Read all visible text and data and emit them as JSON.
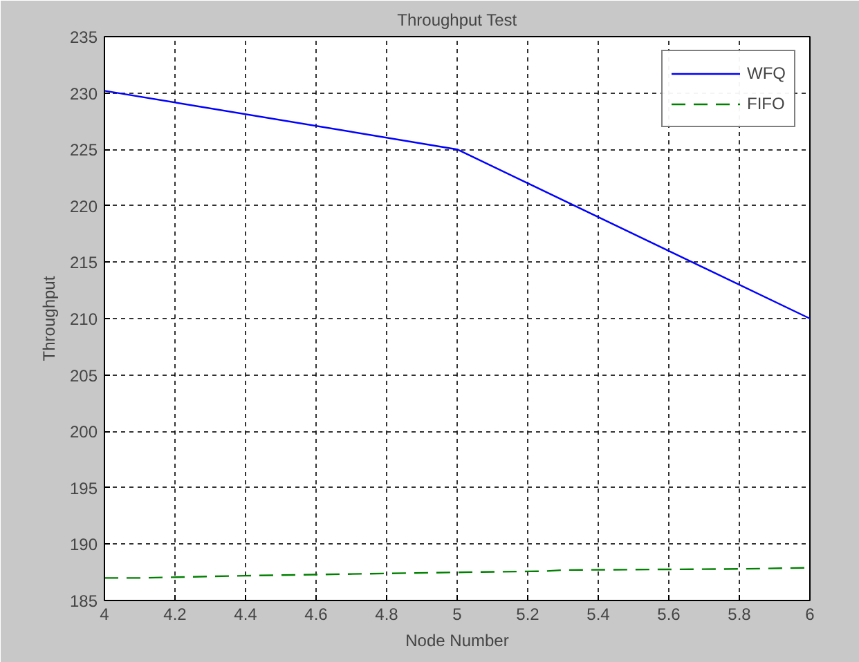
{
  "chart_data": {
    "type": "line",
    "title": "Throughput Test",
    "xlabel": "Node Number",
    "ylabel": "Throughput",
    "xlim": [
      4,
      6
    ],
    "xticks": [
      4,
      4.2,
      4.4,
      4.6,
      4.8,
      5,
      5.2,
      5.4,
      5.6,
      5.8,
      6
    ],
    "ylim": [
      185,
      235
    ],
    "yticks": [
      185,
      190,
      195,
      200,
      205,
      210,
      215,
      220,
      225,
      230,
      235
    ],
    "grid": true,
    "legend": "top right",
    "series": [
      {
        "name": "WFQ",
        "color": "#0000ff",
        "line_style": "solid",
        "x": [
          4,
          5,
          6
        ],
        "values": [
          230.2,
          225,
          210
        ]
      },
      {
        "name": "FIFO",
        "color": "#008000",
        "line_style": "dashed",
        "x": [
          4,
          4.1,
          4.4,
          4.6,
          5,
          5.25,
          5.3,
          5.8,
          6
        ],
        "values": [
          187.0,
          187.0,
          187.2,
          187.3,
          187.5,
          187.6,
          187.7,
          187.8,
          187.9
        ]
      }
    ]
  }
}
